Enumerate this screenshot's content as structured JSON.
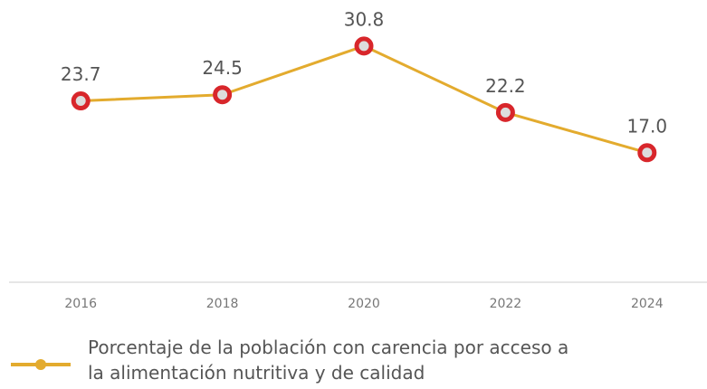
{
  "chart_data": {
    "type": "line",
    "categories": [
      "2016",
      "2018",
      "2020",
      "2022",
      "2024"
    ],
    "series": [
      {
        "name": "Porcentaje de la población con carencia por acceso a la alimentación nutritiva y de calidad",
        "color": "#e3ab2e",
        "values": [
          23.7,
          24.5,
          30.8,
          22.2,
          17.0
        ],
        "value_labels": [
          "23.7",
          "24.5",
          "30.8",
          "22.2",
          "17.0"
        ]
      }
    ],
    "marker_color": "#d8262b",
    "ylim": [
      0,
      35
    ]
  }
}
